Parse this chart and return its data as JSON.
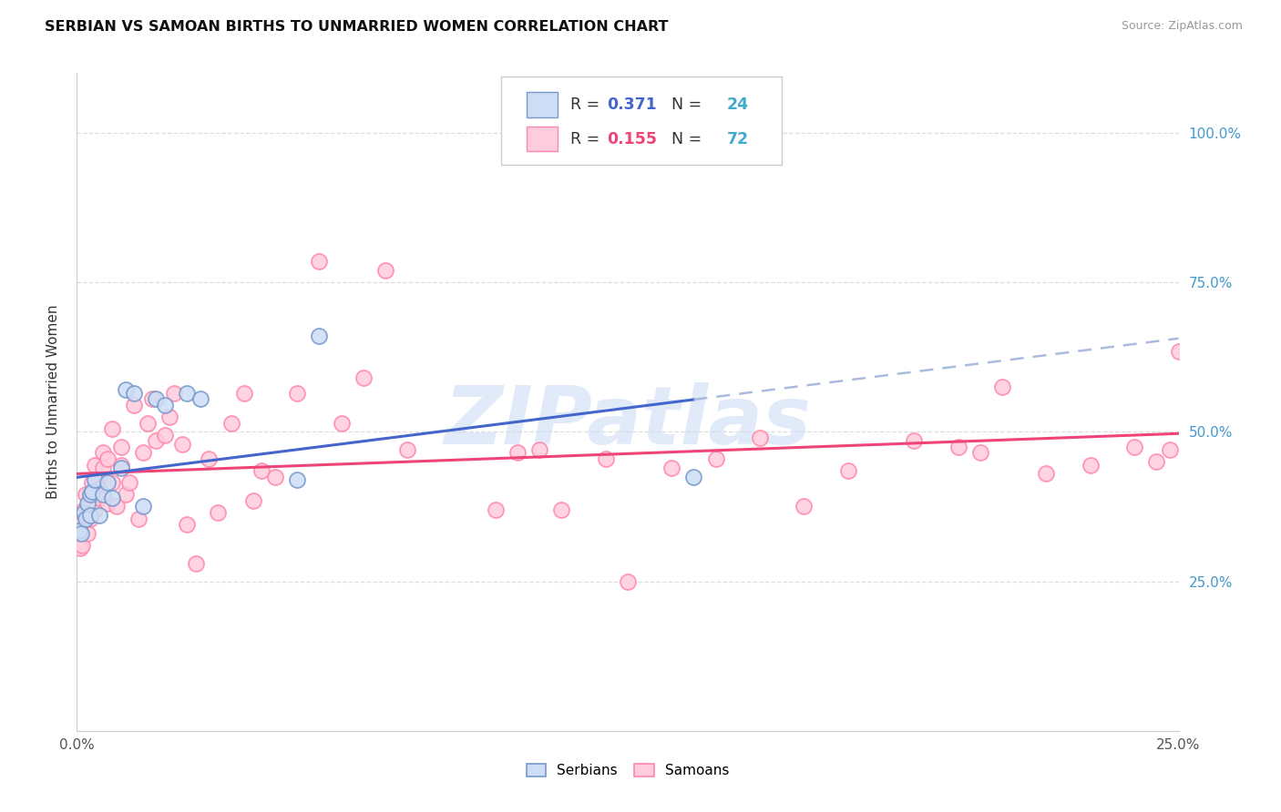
{
  "title": "SERBIAN VS SAMOAN BIRTHS TO UNMARRIED WOMEN CORRELATION CHART",
  "source": "Source: ZipAtlas.com",
  "ylabel": "Births to Unmarried Women",
  "color_serbian_fill": "#CCDDF5",
  "color_serbian_edge": "#7799CC",
  "color_samoan_fill": "#FFCCDD",
  "color_samoan_edge": "#FF88AA",
  "color_trendline_serbian": "#4466CC",
  "color_trendline_samoan": "#EE4477",
  "color_dashed_ext": "#AABBDD",
  "color_grid": "#DDDDDD",
  "color_right_ytick": "#4499CC",
  "watermark_text": "ZIPatlas",
  "watermark_color": "#CCDDF5",
  "legend_r_serbian_color": "#4466CC",
  "legend_n_serbian_color": "#44AACC",
  "legend_r_samoan_color": "#EE4477",
  "legend_n_samoan_color": "#44AACC",
  "r_serbian": "0.371",
  "n_serbian": "24",
  "r_samoan": "0.155",
  "n_samoan": "72",
  "xmin": 0.0,
  "xmax": 0.25,
  "ymin": 0.0,
  "ymax": 1.1,
  "serbian_x": [
    0.0005,
    0.001,
    0.0015,
    0.002,
    0.0025,
    0.003,
    0.003,
    0.0035,
    0.004,
    0.005,
    0.006,
    0.007,
    0.008,
    0.01,
    0.011,
    0.013,
    0.015,
    0.018,
    0.02,
    0.025,
    0.028,
    0.05,
    0.055,
    0.14
  ],
  "serbian_y": [
    0.335,
    0.33,
    0.365,
    0.355,
    0.38,
    0.36,
    0.395,
    0.4,
    0.42,
    0.36,
    0.395,
    0.415,
    0.39,
    0.44,
    0.57,
    0.565,
    0.375,
    0.555,
    0.545,
    0.565,
    0.555,
    0.42,
    0.66,
    0.425
  ],
  "samoan_x": [
    0.0005,
    0.0008,
    0.001,
    0.0012,
    0.0015,
    0.002,
    0.002,
    0.0025,
    0.003,
    0.003,
    0.0035,
    0.004,
    0.004,
    0.005,
    0.005,
    0.006,
    0.006,
    0.007,
    0.007,
    0.008,
    0.008,
    0.009,
    0.01,
    0.01,
    0.011,
    0.012,
    0.013,
    0.014,
    0.015,
    0.016,
    0.017,
    0.018,
    0.02,
    0.021,
    0.022,
    0.024,
    0.025,
    0.027,
    0.03,
    0.032,
    0.035,
    0.038,
    0.04,
    0.042,
    0.045,
    0.05,
    0.055,
    0.06,
    0.065,
    0.07,
    0.075,
    0.095,
    0.1,
    0.105,
    0.11,
    0.12,
    0.125,
    0.135,
    0.145,
    0.155,
    0.165,
    0.175,
    0.19,
    0.2,
    0.205,
    0.21,
    0.22,
    0.23,
    0.24,
    0.245,
    0.248,
    0.25
  ],
  "samoan_y": [
    0.335,
    0.305,
    0.345,
    0.31,
    0.37,
    0.36,
    0.395,
    0.33,
    0.355,
    0.38,
    0.415,
    0.37,
    0.445,
    0.405,
    0.39,
    0.44,
    0.465,
    0.38,
    0.455,
    0.415,
    0.505,
    0.375,
    0.445,
    0.475,
    0.395,
    0.415,
    0.545,
    0.355,
    0.465,
    0.515,
    0.555,
    0.485,
    0.495,
    0.525,
    0.565,
    0.48,
    0.345,
    0.28,
    0.455,
    0.365,
    0.515,
    0.565,
    0.385,
    0.435,
    0.425,
    0.565,
    0.785,
    0.515,
    0.59,
    0.77,
    0.47,
    0.37,
    0.465,
    0.47,
    0.37,
    0.455,
    0.25,
    0.44,
    0.455,
    0.49,
    0.375,
    0.435,
    0.485,
    0.475,
    0.465,
    0.575,
    0.43,
    0.445,
    0.475,
    0.45,
    0.47,
    0.635
  ],
  "ytick_positions": [
    0.25,
    0.5,
    0.75,
    1.0
  ],
  "ytick_labels_right": [
    "25.0%",
    "50.0%",
    "75.0%",
    "100.0%"
  ],
  "xtick_show_only_ends": true
}
